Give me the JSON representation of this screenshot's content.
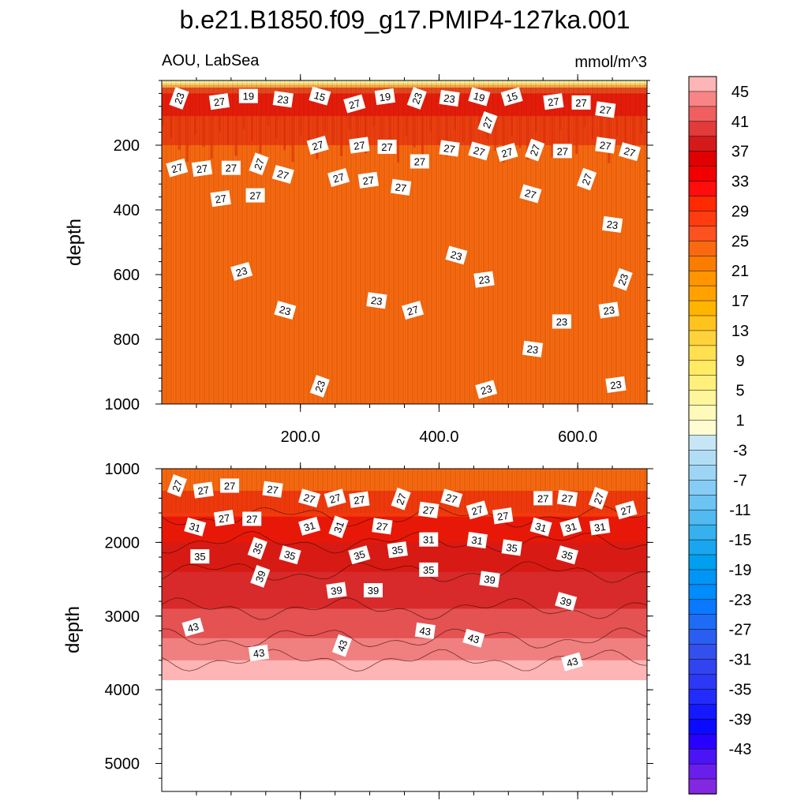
{
  "chart_data": {
    "type": "contour",
    "title": "b.e21.B1850.f09_g17.PMIP4-127ka.001",
    "subtitle_left": "AOU, LabSea",
    "subtitle_right": "mmol/m^3",
    "x_range": [
      0,
      700
    ],
    "x_ticks": [
      "200.0",
      "400.0",
      "600.0"
    ],
    "x_tick_values": [
      200,
      400,
      600
    ],
    "panels": [
      {
        "name": "upper",
        "ylabel": "depth",
        "ylim": [
          0,
          1000
        ],
        "y_ticks": [
          "200",
          "400",
          "600",
          "800",
          "1000"
        ],
        "y_tick_values": [
          200,
          400,
          600,
          800,
          1000
        ],
        "contour_labels": [
          {
            "v": "23",
            "x": 25,
            "y": 55
          },
          {
            "v": "27",
            "x": 83,
            "y": 65
          },
          {
            "v": "19",
            "x": 125,
            "y": 48
          },
          {
            "v": "23",
            "x": 175,
            "y": 58
          },
          {
            "v": "15",
            "x": 228,
            "y": 48
          },
          {
            "v": "27",
            "x": 278,
            "y": 72
          },
          {
            "v": "19",
            "x": 322,
            "y": 50
          },
          {
            "v": "23",
            "x": 368,
            "y": 55
          },
          {
            "v": "23",
            "x": 415,
            "y": 55
          },
          {
            "v": "19",
            "x": 458,
            "y": 50
          },
          {
            "v": "15",
            "x": 505,
            "y": 50
          },
          {
            "v": "27",
            "x": 565,
            "y": 65
          },
          {
            "v": "27",
            "x": 605,
            "y": 68
          },
          {
            "v": "27",
            "x": 640,
            "y": 90
          },
          {
            "v": "27",
            "x": 470,
            "y": 130
          },
          {
            "v": "27",
            "x": 225,
            "y": 200
          },
          {
            "v": "27",
            "x": 285,
            "y": 200
          },
          {
            "v": "27",
            "x": 325,
            "y": 205
          },
          {
            "v": "27",
            "x": 415,
            "y": 210
          },
          {
            "v": "27",
            "x": 458,
            "y": 218
          },
          {
            "v": "27",
            "x": 498,
            "y": 222
          },
          {
            "v": "27",
            "x": 538,
            "y": 215
          },
          {
            "v": "27",
            "x": 578,
            "y": 218
          },
          {
            "v": "27",
            "x": 640,
            "y": 200
          },
          {
            "v": "27",
            "x": 675,
            "y": 220
          },
          {
            "v": "27",
            "x": 22,
            "y": 270
          },
          {
            "v": "27",
            "x": 58,
            "y": 272
          },
          {
            "v": "27",
            "x": 100,
            "y": 270
          },
          {
            "v": "27",
            "x": 140,
            "y": 258
          },
          {
            "v": "27",
            "x": 175,
            "y": 290
          },
          {
            "v": "27",
            "x": 255,
            "y": 300
          },
          {
            "v": "27",
            "x": 298,
            "y": 308
          },
          {
            "v": "27",
            "x": 372,
            "y": 250
          },
          {
            "v": "27",
            "x": 345,
            "y": 330
          },
          {
            "v": "27",
            "x": 532,
            "y": 350
          },
          {
            "v": "27",
            "x": 613,
            "y": 305
          },
          {
            "v": "27",
            "x": 85,
            "y": 365
          },
          {
            "v": "27",
            "x": 135,
            "y": 355
          },
          {
            "v": "23",
            "x": 650,
            "y": 445
          },
          {
            "v": "23",
            "x": 425,
            "y": 540
          },
          {
            "v": "23",
            "x": 115,
            "y": 590
          },
          {
            "v": "23",
            "x": 465,
            "y": 615
          },
          {
            "v": "23",
            "x": 665,
            "y": 615
          },
          {
            "v": "23",
            "x": 310,
            "y": 680
          },
          {
            "v": "23",
            "x": 178,
            "y": 710
          },
          {
            "v": "27",
            "x": 362,
            "y": 710
          },
          {
            "v": "23",
            "x": 645,
            "y": 710
          },
          {
            "v": "23",
            "x": 577,
            "y": 745
          },
          {
            "v": "23",
            "x": 535,
            "y": 830
          },
          {
            "v": "23",
            "x": 228,
            "y": 945
          },
          {
            "v": "23",
            "x": 468,
            "y": 955
          },
          {
            "v": "23",
            "x": 655,
            "y": 940
          }
        ]
      },
      {
        "name": "lower",
        "ylabel": "depth",
        "ylim": [
          1000,
          5380
        ],
        "y_ticks": [
          "1000",
          "2000",
          "3000",
          "4000",
          "5000"
        ],
        "y_tick_values": [
          1000,
          2000,
          3000,
          4000,
          5000
        ],
        "data_bottom_depth": 3870,
        "contour_labels": [
          {
            "v": "27",
            "x": 22,
            "y": 1230
          },
          {
            "v": "27",
            "x": 60,
            "y": 1290
          },
          {
            "v": "27",
            "x": 98,
            "y": 1230
          },
          {
            "v": "27",
            "x": 160,
            "y": 1280
          },
          {
            "v": "27",
            "x": 213,
            "y": 1400
          },
          {
            "v": "27",
            "x": 250,
            "y": 1400
          },
          {
            "v": "27",
            "x": 285,
            "y": 1420
          },
          {
            "v": "27",
            "x": 345,
            "y": 1410
          },
          {
            "v": "27",
            "x": 385,
            "y": 1560
          },
          {
            "v": "27",
            "x": 418,
            "y": 1400
          },
          {
            "v": "27",
            "x": 455,
            "y": 1560
          },
          {
            "v": "27",
            "x": 492,
            "y": 1640
          },
          {
            "v": "27",
            "x": 550,
            "y": 1400
          },
          {
            "v": "27",
            "x": 585,
            "y": 1400
          },
          {
            "v": "27",
            "x": 630,
            "y": 1400
          },
          {
            "v": "27",
            "x": 670,
            "y": 1560
          },
          {
            "v": "27",
            "x": 90,
            "y": 1670
          },
          {
            "v": "27",
            "x": 130,
            "y": 1680
          },
          {
            "v": "27",
            "x": 318,
            "y": 1780
          },
          {
            "v": "31",
            "x": 48,
            "y": 1790
          },
          {
            "v": "31",
            "x": 213,
            "y": 1780
          },
          {
            "v": "31",
            "x": 255,
            "y": 1790
          },
          {
            "v": "31",
            "x": 385,
            "y": 1960
          },
          {
            "v": "31",
            "x": 455,
            "y": 1970
          },
          {
            "v": "31",
            "x": 547,
            "y": 1790
          },
          {
            "v": "31",
            "x": 590,
            "y": 1790
          },
          {
            "v": "31",
            "x": 632,
            "y": 1790
          },
          {
            "v": "35",
            "x": 55,
            "y": 2190
          },
          {
            "v": "35",
            "x": 138,
            "y": 2080
          },
          {
            "v": "35",
            "x": 185,
            "y": 2170
          },
          {
            "v": "35",
            "x": 285,
            "y": 2170
          },
          {
            "v": "35",
            "x": 340,
            "y": 2100
          },
          {
            "v": "35",
            "x": 385,
            "y": 2370
          },
          {
            "v": "35",
            "x": 505,
            "y": 2070
          },
          {
            "v": "35",
            "x": 585,
            "y": 2170
          },
          {
            "v": "39",
            "x": 142,
            "y": 2460
          },
          {
            "v": "39",
            "x": 252,
            "y": 2650
          },
          {
            "v": "39",
            "x": 305,
            "y": 2650
          },
          {
            "v": "39",
            "x": 473,
            "y": 2500
          },
          {
            "v": "39",
            "x": 583,
            "y": 2800
          },
          {
            "v": "43",
            "x": 45,
            "y": 3150
          },
          {
            "v": "43",
            "x": 140,
            "y": 3500
          },
          {
            "v": "43",
            "x": 260,
            "y": 3400
          },
          {
            "v": "43",
            "x": 380,
            "y": 3200
          },
          {
            "v": "43",
            "x": 450,
            "y": 3300
          },
          {
            "v": "43",
            "x": 592,
            "y": 3620
          }
        ]
      }
    ],
    "colorbar": {
      "labels": [
        "45",
        "41",
        "37",
        "33",
        "29",
        "25",
        "21",
        "17",
        "13",
        "9",
        "5",
        "1",
        "-3",
        "-7",
        "-11",
        "-15",
        "-19",
        "-23",
        "-27",
        "-31",
        "-35",
        "-39",
        "-43"
      ],
      "label_values": [
        45,
        41,
        37,
        33,
        29,
        25,
        21,
        17,
        13,
        9,
        5,
        1,
        -3,
        -7,
        -11,
        -15,
        -19,
        -23,
        -27,
        -31,
        -35,
        -39,
        -43
      ],
      "colors": [
        "#fdb5b5",
        "#f78585",
        "#ef5f5f",
        "#e33a3a",
        "#d41a1a",
        "#e00000",
        "#f20000",
        "#ff0d0d",
        "#ff2a00",
        "#ff3c0f",
        "#fc5220",
        "#f96a10",
        "#fb7d00",
        "#ff9500",
        "#ffa200",
        "#ffb400",
        "#ffc31e",
        "#ffd23c",
        "#ffe050",
        "#ffea64",
        "#fff07d",
        "#fff59b",
        "#fffab9",
        "#fffcd2",
        "#c7e6f5",
        "#b2def5",
        "#9dd6f5",
        "#86ccf5",
        "#6dc4f2",
        "#52baf0",
        "#37b0ee",
        "#19a6ee",
        "#009ff0",
        "#0095f5",
        "#008cfa",
        "#0a78ff",
        "#1e6cf5",
        "#2a5ef0",
        "#3250eb",
        "#3244f0",
        "#2d38f5",
        "#232cfa",
        "#1419ff",
        "#0a0aff",
        "#2800ff",
        "#4a14f5",
        "#6a1eeb",
        "#8228e1"
      ]
    }
  }
}
